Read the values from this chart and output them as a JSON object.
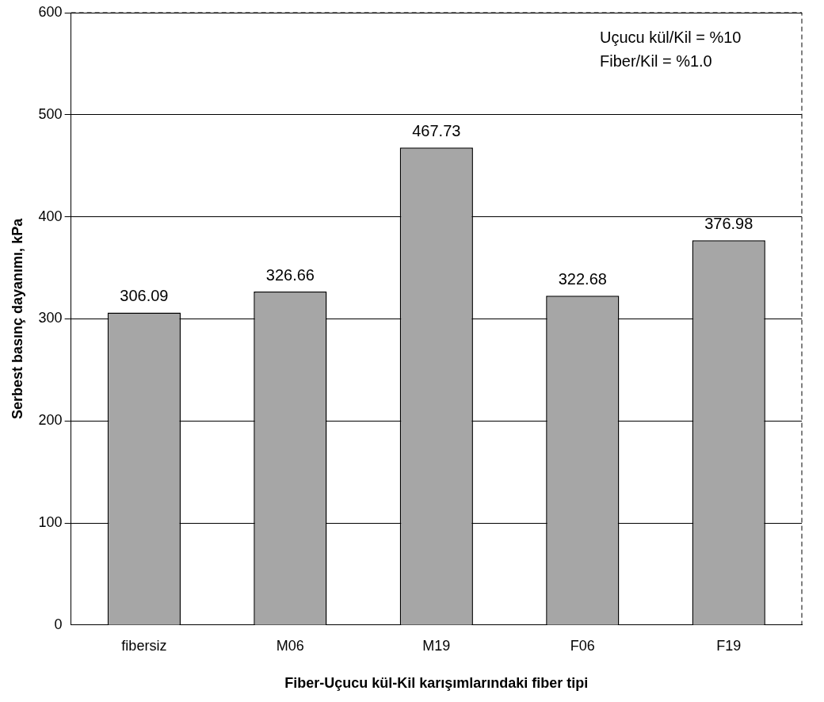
{
  "chart_data": {
    "type": "bar",
    "xlabel": "Fiber-Uçucu kül-Kil karışımlarındaki fiber tipi",
    "ylabel": "Serbest basınç dayanımı, kPa",
    "categories": [
      "fibersiz",
      "M06",
      "M19",
      "F06",
      "F19"
    ],
    "values": [
      306.09,
      326.66,
      467.73,
      322.68,
      376.98
    ],
    "color": "#a6a6a6",
    "ylim": [
      0,
      600
    ],
    "yticks": [
      0,
      100,
      200,
      300,
      400,
      500,
      600
    ],
    "grid": "y",
    "legend": false,
    "data_labels": true,
    "annotations": [
      "Uçucu kül/Kil = %10",
      "Fiber/Kil = %1.0"
    ]
  }
}
